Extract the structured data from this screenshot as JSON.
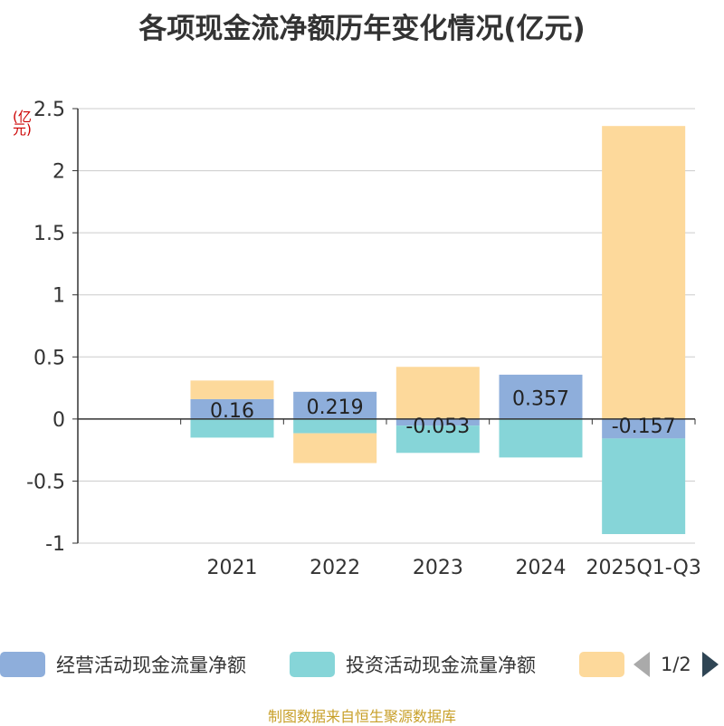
{
  "title": "各项现金流净额历年变化情况(亿元)",
  "unit_label": "(亿元)",
  "footer": "制图数据来自恒生聚源数据库",
  "legend": {
    "items": [
      {
        "label": "经营活动现金流量净额",
        "color": "#8eaedb"
      },
      {
        "label": "投资活动现金流量净额",
        "color": "#86d5d8"
      },
      {
        "label": "",
        "color": "#fdd99b"
      }
    ],
    "page": "1/2"
  },
  "chart_data": {
    "type": "bar",
    "stacked": true,
    "categories": [
      "2021",
      "2022",
      "2023",
      "2024",
      "2025Q1-Q3"
    ],
    "ylim": [
      -1,
      2.5
    ],
    "yticks": [
      "2.5",
      "2",
      "1.5",
      "1",
      "0.5",
      "0",
      "-0.5",
      "-1"
    ],
    "grid": true,
    "series": [
      {
        "name": "经营活动现金流量净额",
        "color": "#8eaedb",
        "values": [
          0.16,
          0.219,
          -0.053,
          0.357,
          -0.157
        ],
        "labels": [
          "0.16",
          "0.219",
          "-0.053",
          "0.357",
          "-0.157"
        ]
      },
      {
        "name": "投资活动现金流量净额",
        "color": "#86d5d8",
        "values": [
          -0.15,
          -0.115,
          -0.22,
          -0.31,
          -0.77
        ]
      },
      {
        "name": "",
        "color": "#fdd99b",
        "values": [
          0.15,
          -0.24,
          0.42,
          0.0,
          2.36
        ]
      }
    ]
  }
}
